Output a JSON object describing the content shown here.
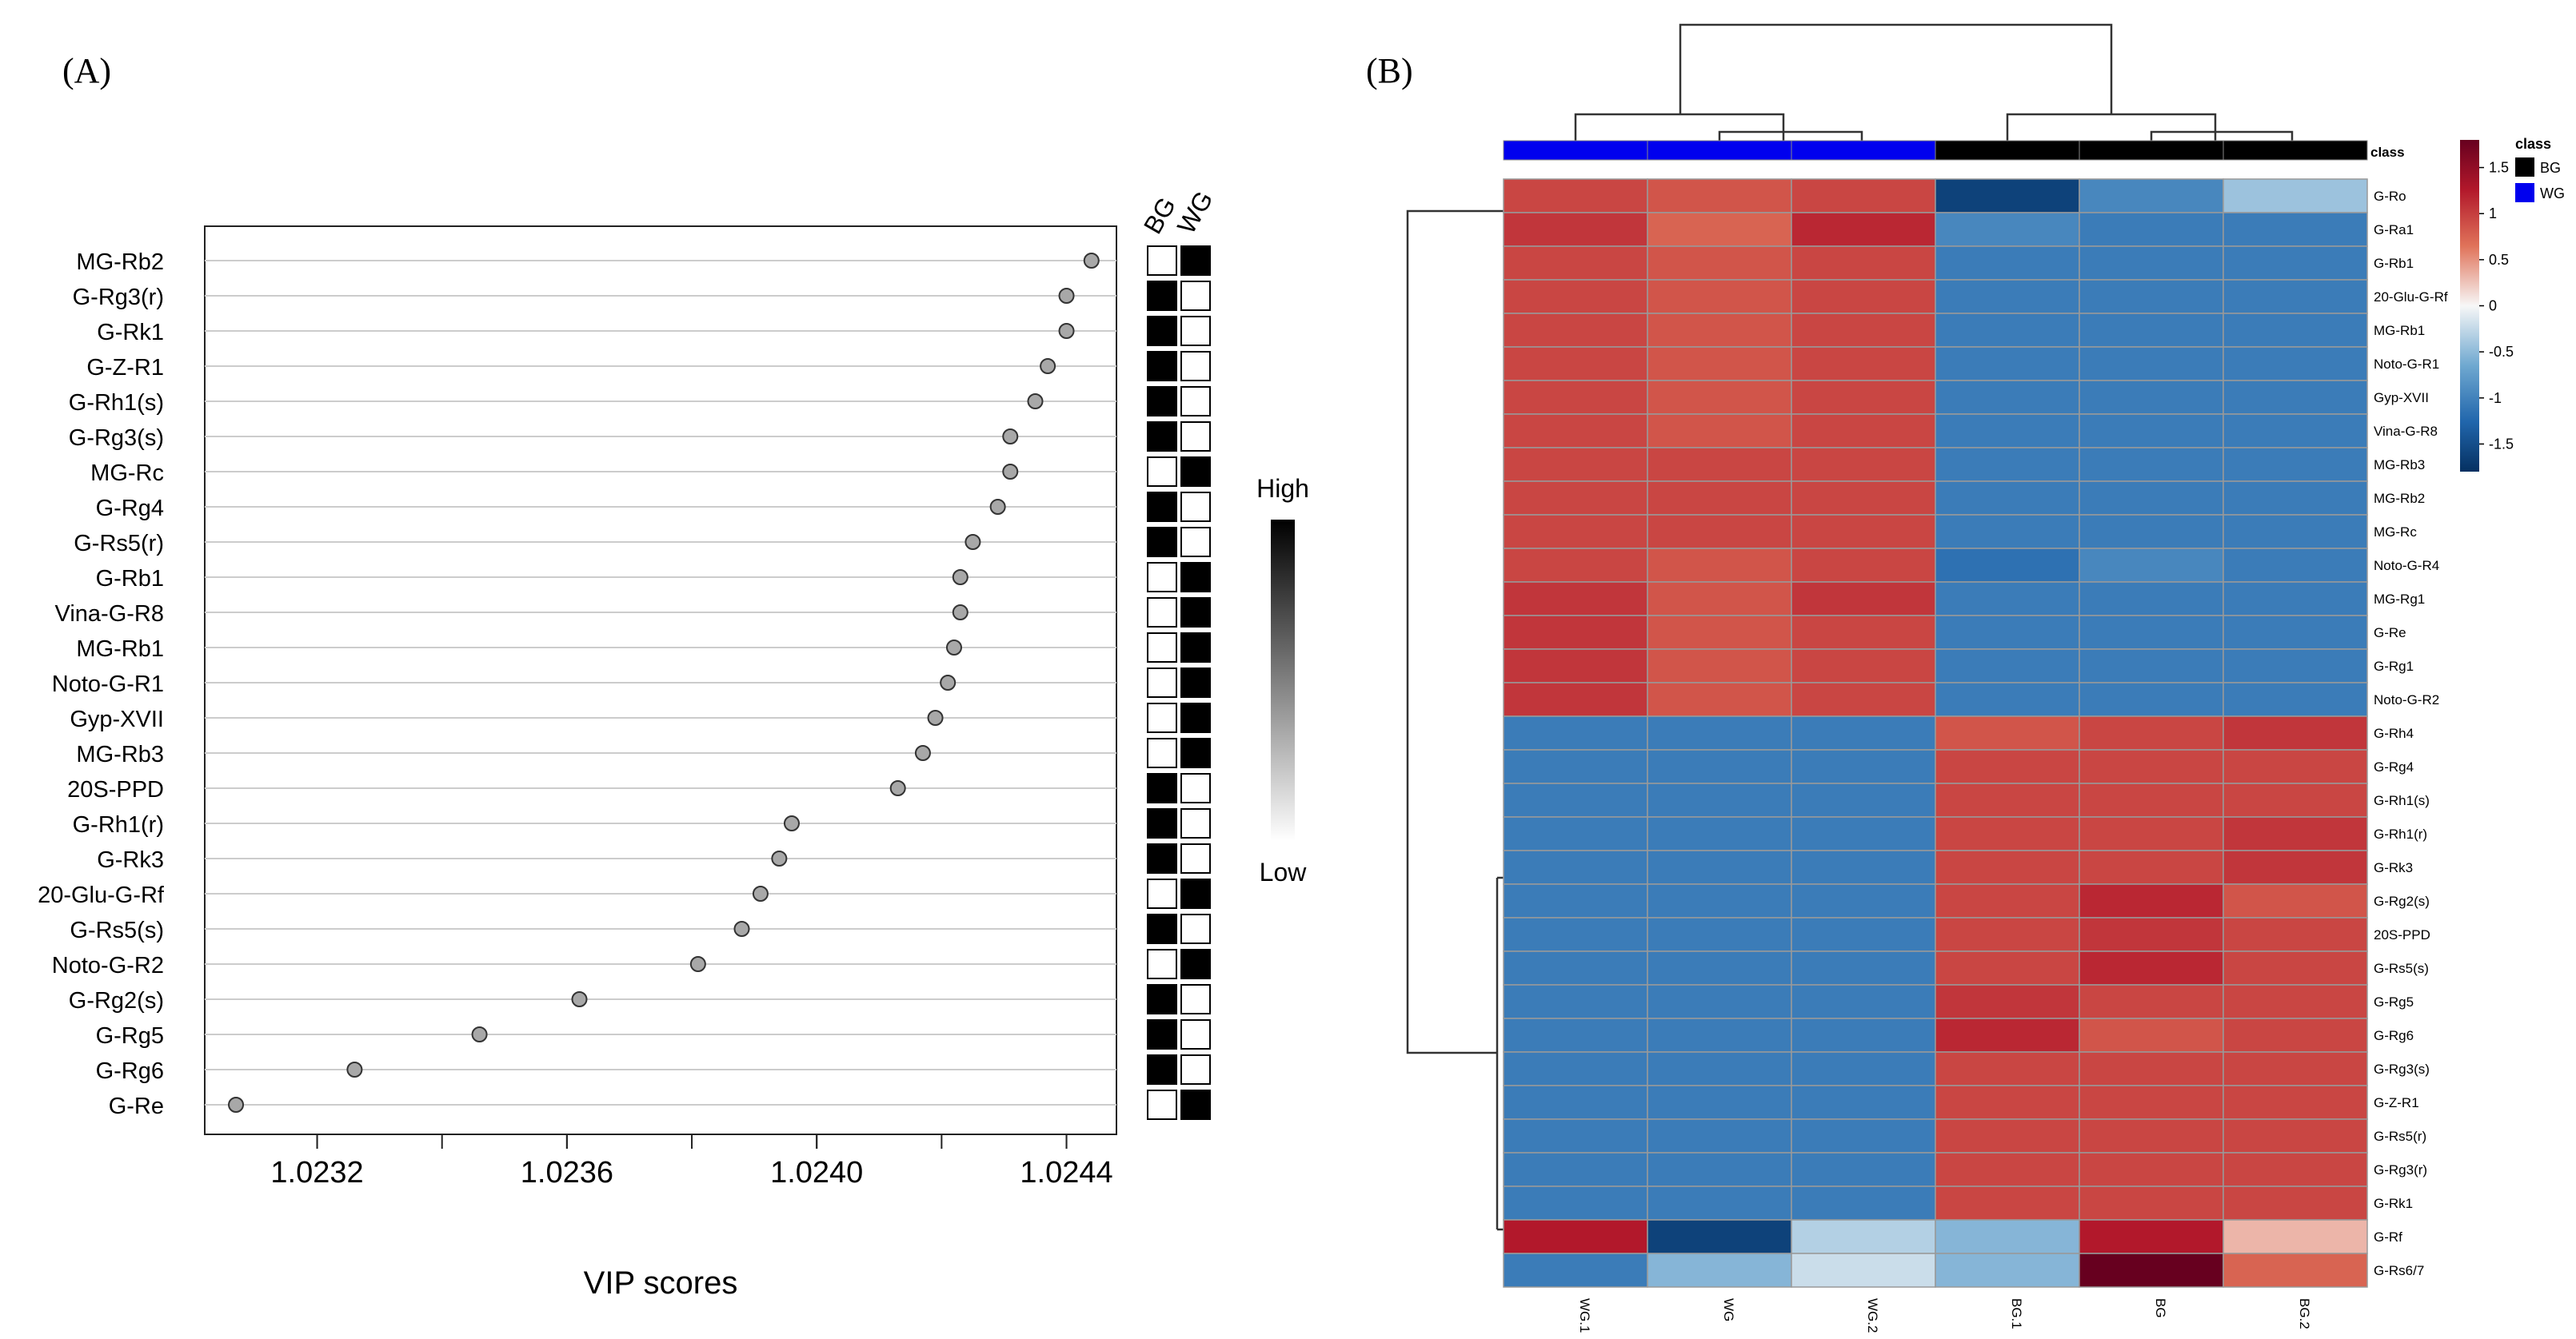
{
  "panel_a": {
    "label": "(A)",
    "group_headers": [
      "BG",
      "WG"
    ],
    "legend_high": "High",
    "legend_low": "Low"
  },
  "panel_b": {
    "label": "(B)",
    "class_label": "class",
    "legend_title": "class",
    "legend_entries": [
      {
        "name": "BG",
        "color": "#000000"
      },
      {
        "name": "WG",
        "color": "#0000ee"
      }
    ],
    "colorbar_ticks": [
      "1.5",
      "1",
      "0.5",
      "0",
      "-0.5",
      "-1",
      "-1.5"
    ]
  },
  "colors": {
    "high": "#67001f",
    "mid": "#f7f7f7",
    "low": "#053061",
    "dot_fill": "#a8a8a8",
    "grid": "#cccccc"
  },
  "chart_data": [
    {
      "type": "scatter",
      "title": "",
      "xlabel": "VIP scores",
      "ylabel": "",
      "xlim": [
        1.02302,
        1.02448
      ],
      "xticks": [
        "1.0232",
        "1.0236",
        "1.0240",
        "1.0244"
      ],
      "xtick_values": [
        1.0232,
        1.0236,
        1.024,
        1.0244
      ],
      "grid": "horizontal",
      "categories": [
        "MG-Rb2",
        "G-Rg3(r)",
        "G-Rk1",
        "G-Z-R1",
        "G-Rh1(s)",
        "G-Rg3(s)",
        "MG-Rc",
        "G-Rg4",
        "G-Rs5(r)",
        "G-Rb1",
        "Vina-G-R8",
        "MG-Rb1",
        "Noto-G-R1",
        "Gyp-XVII",
        "MG-Rb3",
        "20S-PPD",
        "G-Rh1(r)",
        "G-Rk3",
        "20-Glu-G-Rf",
        "G-Rs5(s)",
        "Noto-G-R2",
        "G-Rg2(s)",
        "G-Rg5",
        "G-Rg6",
        "G-Re"
      ],
      "values": [
        1.02444,
        1.0244,
        1.0244,
        1.02437,
        1.02435,
        1.02431,
        1.02431,
        1.02429,
        1.02425,
        1.02423,
        1.02423,
        1.02422,
        1.02421,
        1.02419,
        1.02417,
        1.02413,
        1.02396,
        1.02394,
        1.02391,
        1.02388,
        1.02381,
        1.02362,
        1.02346,
        1.02326,
        1.02307
      ],
      "group_high": [
        "WG",
        "BG",
        "BG",
        "BG",
        "BG",
        "BG",
        "WG",
        "BG",
        "BG",
        "WG",
        "WG",
        "WG",
        "WG",
        "WG",
        "WG",
        "BG",
        "BG",
        "BG",
        "WG",
        "BG",
        "WG",
        "BG",
        "BG",
        "BG",
        "WG"
      ]
    },
    {
      "type": "heatmap",
      "title": "",
      "columns": [
        "WG.1",
        "WG",
        "WG.2",
        "BG.1",
        "BG",
        "BG.2"
      ],
      "column_class": [
        "WG",
        "WG",
        "WG",
        "BG",
        "BG",
        "BG"
      ],
      "rows": [
        "G-Ro",
        "G-Ra1",
        "G-Rb1",
        "20-Glu-G-Rf",
        "MG-Rb1",
        "Noto-G-R1",
        "Gyp-XVII",
        "Vina-G-R8",
        "MG-Rb3",
        "MG-Rb2",
        "MG-Rc",
        "Noto-G-R4",
        "MG-Rg1",
        "G-Re",
        "G-Rg1",
        "Noto-G-R2",
        "G-Rh4",
        "G-Rg4",
        "G-Rh1(s)",
        "G-Rh1(r)",
        "G-Rk3",
        "G-Rg2(s)",
        "20S-PPD",
        "G-Rs5(s)",
        "G-Rg5",
        "G-Rg6",
        "G-Rg3(s)",
        "G-Z-R1",
        "G-Rs5(r)",
        "G-Rg3(r)",
        "G-Rk1",
        "G-Rf",
        "G-Rs6/7"
      ],
      "values": [
        [
          0.9,
          0.8,
          0.9,
          -1.6,
          -0.9,
          -0.4
        ],
        [
          1.0,
          0.7,
          1.1,
          -0.9,
          -1.0,
          -1.0
        ],
        [
          0.9,
          0.8,
          0.9,
          -1.0,
          -1.0,
          -1.0
        ],
        [
          0.9,
          0.8,
          0.9,
          -1.0,
          -1.0,
          -1.0
        ],
        [
          0.9,
          0.8,
          0.9,
          -1.0,
          -1.0,
          -1.0
        ],
        [
          0.9,
          0.8,
          0.9,
          -1.0,
          -1.0,
          -1.0
        ],
        [
          0.9,
          0.8,
          0.9,
          -1.0,
          -1.0,
          -1.0
        ],
        [
          0.9,
          0.8,
          0.9,
          -1.0,
          -1.0,
          -1.0
        ],
        [
          0.9,
          0.9,
          0.9,
          -1.0,
          -1.0,
          -1.0
        ],
        [
          0.9,
          0.9,
          0.9,
          -1.0,
          -1.0,
          -1.0
        ],
        [
          0.9,
          0.9,
          0.9,
          -1.0,
          -1.0,
          -1.0
        ],
        [
          0.9,
          0.8,
          0.9,
          -1.1,
          -0.9,
          -1.0
        ],
        [
          1.0,
          0.8,
          1.0,
          -1.0,
          -1.0,
          -1.0
        ],
        [
          1.0,
          0.8,
          0.9,
          -1.0,
          -1.0,
          -1.0
        ],
        [
          1.0,
          0.8,
          0.9,
          -1.0,
          -1.0,
          -1.0
        ],
        [
          1.0,
          0.8,
          0.9,
          -1.0,
          -1.0,
          -1.0
        ],
        [
          -1.0,
          -1.0,
          -1.0,
          0.8,
          0.9,
          1.0
        ],
        [
          -1.0,
          -1.0,
          -1.0,
          0.9,
          0.9,
          0.9
        ],
        [
          -1.0,
          -1.0,
          -1.0,
          0.9,
          0.9,
          0.9
        ],
        [
          -1.0,
          -1.0,
          -1.0,
          0.9,
          0.9,
          1.0
        ],
        [
          -1.0,
          -1.0,
          -1.0,
          0.9,
          0.9,
          1.0
        ],
        [
          -1.0,
          -1.0,
          -1.0,
          0.9,
          1.1,
          0.8
        ],
        [
          -1.0,
          -1.0,
          -1.0,
          0.9,
          1.0,
          0.9
        ],
        [
          -1.0,
          -1.0,
          -1.0,
          0.9,
          1.1,
          0.9
        ],
        [
          -1.0,
          -1.0,
          -1.0,
          1.0,
          0.9,
          0.9
        ],
        [
          -1.0,
          -1.0,
          -1.0,
          1.1,
          0.8,
          0.9
        ],
        [
          -1.0,
          -1.0,
          -1.0,
          0.9,
          0.9,
          0.9
        ],
        [
          -1.0,
          -1.0,
          -1.0,
          0.9,
          0.9,
          0.9
        ],
        [
          -1.0,
          -1.0,
          -1.0,
          0.9,
          0.9,
          0.9
        ],
        [
          -1.0,
          -1.0,
          -1.0,
          0.9,
          0.9,
          0.9
        ],
        [
          -1.0,
          -1.0,
          -1.0,
          0.9,
          0.9,
          0.9
        ],
        [
          1.2,
          -1.6,
          -0.3,
          -0.5,
          1.2,
          0.3
        ],
        [
          -1.0,
          -0.5,
          -0.2,
          -0.5,
          1.9,
          0.7
        ]
      ],
      "colorbar_range": [
        -1.8,
        1.8
      ]
    }
  ]
}
